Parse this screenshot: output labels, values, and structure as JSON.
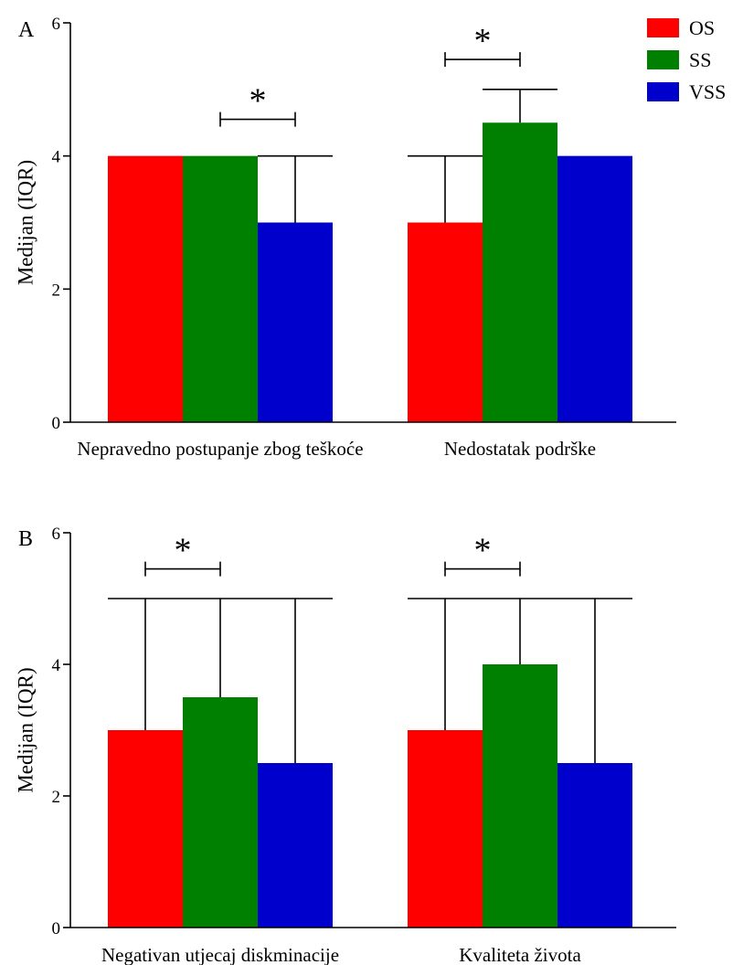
{
  "legend": [
    {
      "label": "OS",
      "color": "#ff0000"
    },
    {
      "label": "SS",
      "color": "#008000"
    },
    {
      "label": "VSS",
      "color": "#0000cc"
    }
  ],
  "chart_data": [
    {
      "panel": "A",
      "type": "bar",
      "ylabel": "Medijan (IQR)",
      "ylim": [
        0,
        6
      ],
      "yticks": [
        "0",
        "2",
        "4",
        "6"
      ],
      "categories": [
        "Nepravedno postupanje zbog teškoće",
        "Nedostatak podrške"
      ],
      "series": [
        {
          "name": "OS",
          "color": "#ff0000",
          "values": [
            4,
            3
          ],
          "upper": [
            4,
            4
          ]
        },
        {
          "name": "SS",
          "color": "#008000",
          "values": [
            4,
            4.5
          ],
          "upper": [
            4,
            5
          ]
        },
        {
          "name": "VSS",
          "color": "#0000cc",
          "values": [
            3,
            4
          ],
          "upper": [
            4,
            4
          ]
        }
      ],
      "significance": [
        {
          "category": 0,
          "from_series": 1,
          "to_series": 2,
          "y": 4.55,
          "label": "*"
        },
        {
          "category": 1,
          "from_series": 0,
          "to_series": 1,
          "y": 5.45,
          "label": "*"
        }
      ]
    },
    {
      "panel": "B",
      "type": "bar",
      "ylabel": "Medijan (IQR)",
      "ylim": [
        0,
        6
      ],
      "yticks": [
        "0",
        "2",
        "4",
        "6"
      ],
      "categories": [
        "Negativan utjecaj diskminacije",
        "Kvaliteta života"
      ],
      "series": [
        {
          "name": "OS",
          "color": "#ff0000",
          "values": [
            3,
            3
          ],
          "upper": [
            5,
            5
          ]
        },
        {
          "name": "SS",
          "color": "#008000",
          "values": [
            3.5,
            4
          ],
          "upper": [
            5,
            5
          ]
        },
        {
          "name": "VSS",
          "color": "#0000cc",
          "values": [
            2.5,
            2.5
          ],
          "upper": [
            5,
            5
          ]
        }
      ],
      "significance": [
        {
          "category": 0,
          "from_series": 0,
          "to_series": 1,
          "y": 5.45,
          "label": "*"
        },
        {
          "category": 1,
          "from_series": 0,
          "to_series": 1,
          "y": 5.45,
          "label": "*"
        }
      ]
    }
  ]
}
